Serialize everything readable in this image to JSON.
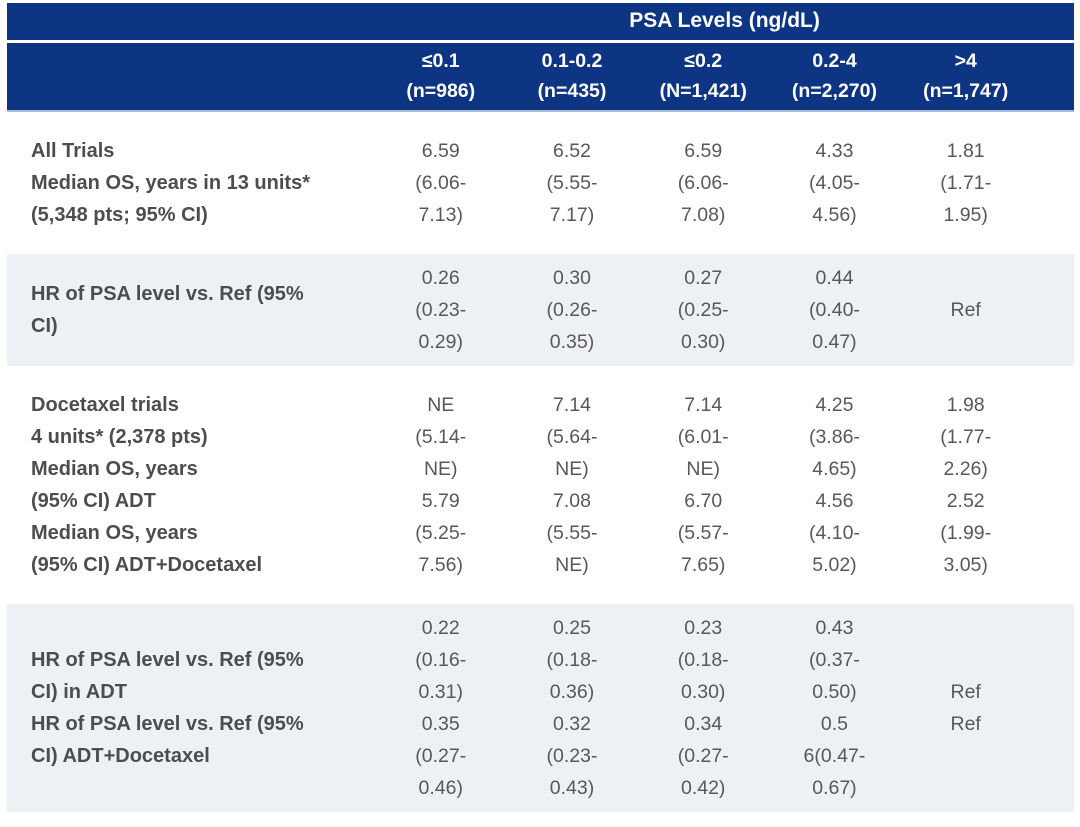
{
  "chart_data": {
    "type": "table",
    "title": "PSA Levels (ng/dL)",
    "columns": [
      "≤0.1 (n=986)",
      "0.1-0.2 (n=435)",
      "≤0.2 (N=1,421)",
      "0.2-4 (n=2,270)",
      ">4 (n=1,747)"
    ],
    "rows": [
      {
        "label": "All Trials Median OS, years in 13 units* (5,348 pts; 95% CI)",
        "values": [
          "6.59 (6.06-7.13)",
          "6.52 (5.55-7.17)",
          "6.59 (6.06-7.08)",
          "4.33 (4.05-4.56)",
          "1.81 (1.71-1.95)"
        ]
      },
      {
        "label": "HR of PSA level vs. Ref (95% CI)",
        "values": [
          "0.26 (0.23-0.29)",
          "0.30 (0.26-0.35)",
          "0.27 (0.25-0.30)",
          "0.44 (0.40-0.47)",
          "Ref"
        ]
      },
      {
        "label": "Docetaxel trials 4 units* (2,378 pts) Median OS, years (95% CI) ADT; Median OS, years (95% CI) ADT+Docetaxel",
        "values": [
          "NE (5.14-NE); 5.79 (5.25-7.56)",
          "7.14 (5.64-NE); 7.08 (5.55-NE)",
          "7.14 (6.01-NE); 6.70 (5.57-7.65)",
          "4.25 (3.86-4.65); 4.56 (4.10-5.02)",
          "1.98 (1.77-2.26); 2.52 (1.99-3.05)"
        ]
      },
      {
        "label": "HR of PSA level vs. Ref (95% CI) in ADT; HR of PSA level vs. Ref (95% CI) ADT+Docetaxel",
        "values": [
          "0.22 (0.16-0.31); 0.35 (0.27-0.46)",
          "0.25 (0.18-0.36); 0.32 (0.23-0.43)",
          "0.23 (0.18-0.30); 0.34 (0.27-0.42)",
          "0.43 (0.37-0.50); 0.56 (0.47-0.67)",
          "Ref; Ref"
        ]
      }
    ]
  },
  "table": {
    "title": "PSA Levels (ng/dL)",
    "columns": [
      {
        "range": "≤0.1",
        "n": "(n=986)"
      },
      {
        "range": "0.1-0.2",
        "n": "(n=435)"
      },
      {
        "range": "≤0.2",
        "n": "(N=1,421)"
      },
      {
        "range": "0.2-4",
        "n": "(n=2,270)"
      },
      {
        "range": ">4",
        "n": "(n=1,747)"
      }
    ],
    "rows": [
      {
        "shaded": false,
        "label_lines": [
          "All Trials",
          "Median OS, years in 13 units*",
          "(5,348 pts; 95% CI)"
        ],
        "cells": [
          [
            "6.59",
            "(6.06-",
            "7.13)"
          ],
          [
            "6.52",
            "(5.55-",
            "7.17)"
          ],
          [
            "6.59",
            "(6.06-",
            "7.08)"
          ],
          [
            "4.33",
            "(4.05-",
            "4.56)"
          ],
          [
            "1.81",
            "(1.71-",
            "1.95)"
          ]
        ]
      },
      {
        "shaded": true,
        "label_lines": [
          "HR of PSA level vs. Ref (95%",
          "CI)"
        ],
        "cells": [
          [
            "0.26",
            "(0.23-",
            "0.29)"
          ],
          [
            "0.30",
            "(0.26-",
            "0.35)"
          ],
          [
            "0.27",
            "(0.25-",
            "0.30)"
          ],
          [
            "0.44",
            "(0.40-",
            "0.47)"
          ],
          [
            "",
            "Ref",
            ""
          ]
        ]
      },
      {
        "shaded": false,
        "label_lines": [
          "Docetaxel trials",
          "4 units* (2,378 pts)",
          "Median OS, years",
          "(95% CI) ADT",
          "Median OS, years",
          "(95% CI) ADT+Docetaxel"
        ],
        "cells": [
          [
            "NE",
            "(5.14-",
            "NE)",
            "5.79",
            "(5.25-",
            "7.56)"
          ],
          [
            "7.14",
            "(5.64-",
            "NE)",
            "7.08",
            "(5.55-",
            "NE)"
          ],
          [
            "7.14",
            "(6.01-",
            "NE)",
            "6.70",
            "(5.57-",
            "7.65)"
          ],
          [
            "4.25",
            "(3.86-",
            "4.65)",
            "4.56",
            "(4.10-",
            "5.02)"
          ],
          [
            "1.98",
            "(1.77-",
            "2.26)",
            "2.52",
            "(1.99-",
            "3.05)"
          ]
        ]
      },
      {
        "shaded": true,
        "label_lines": [
          "HR of PSA level vs. Ref (95%",
          "CI) in ADT",
          "HR of PSA level vs. Ref (95%",
          "CI) ADT+Docetaxel"
        ],
        "cells": [
          [
            "0.22",
            "(0.16-",
            "0.31)",
            "0.35",
            "(0.27-",
            "0.46)"
          ],
          [
            "0.25",
            "(0.18-",
            "0.36)",
            "0.32",
            "(0.23-",
            "0.43)"
          ],
          [
            "0.23",
            "(0.18-",
            "0.30)",
            "0.34",
            "(0.27-",
            "0.42)"
          ],
          [
            "0.43",
            "(0.37-",
            "0.50)",
            "0.5",
            "6(0.47-",
            "0.67)"
          ],
          [
            "",
            "",
            "Ref",
            "Ref",
            "",
            ""
          ]
        ]
      }
    ]
  },
  "colors": {
    "header_bg": "#0d3583",
    "header_text": "#ffffff",
    "shaded_row_bg": "#edf0f5",
    "label_text": "#4d4d4f",
    "value_text": "#58585a",
    "header_divider": "#a9bcd6"
  }
}
